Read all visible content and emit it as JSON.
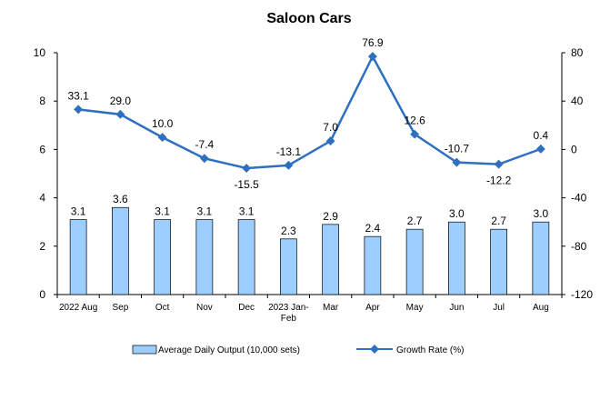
{
  "chart_data": {
    "type": "bar",
    "title": "Saloon Cars",
    "categories": [
      "2022 Aug",
      "Sep",
      "Oct",
      "Nov",
      "Dec",
      "2023 Jan-Feb",
      "Mar",
      "Apr",
      "May",
      "Jun",
      "Jul",
      "Aug"
    ],
    "series": [
      {
        "name": "Average Daily Output (10,000 sets)",
        "type": "bar",
        "axis": "left",
        "color": "#9ccfff",
        "values": [
          3.1,
          3.6,
          3.1,
          3.1,
          3.1,
          2.3,
          2.9,
          2.4,
          2.7,
          3.0,
          2.7,
          3.0
        ],
        "labels": [
          "3.1",
          "3.6",
          "3.1",
          "3.1",
          "3.1",
          "2.3",
          "2.9",
          "2.4",
          "2.7",
          "3.0",
          "2.7",
          "3.0"
        ]
      },
      {
        "name": "Growth Rate (%)",
        "type": "line",
        "axis": "right",
        "color": "#2e6fc0",
        "values": [
          33.1,
          29.0,
          10.0,
          -7.4,
          -15.5,
          -13.1,
          7.0,
          76.9,
          12.6,
          -10.7,
          -12.2,
          0.4
        ],
        "labels": [
          "33.1",
          "29.0",
          "10.0",
          "-7.4",
          "-15.5",
          "-13.1",
          "7.0",
          "76.9",
          "12.6",
          "-10.7",
          "-12.2",
          "0.4"
        ]
      }
    ],
    "y_left": {
      "min": 0,
      "max": 10,
      "ticks": [
        "0",
        "2",
        "4",
        "6",
        "8",
        "10"
      ]
    },
    "y_right": {
      "min": -120,
      "max": 80,
      "ticks": [
        "-120",
        "-80",
        "-40",
        "0",
        "40",
        "80"
      ]
    },
    "grid": false,
    "legend_position": "bottom"
  }
}
